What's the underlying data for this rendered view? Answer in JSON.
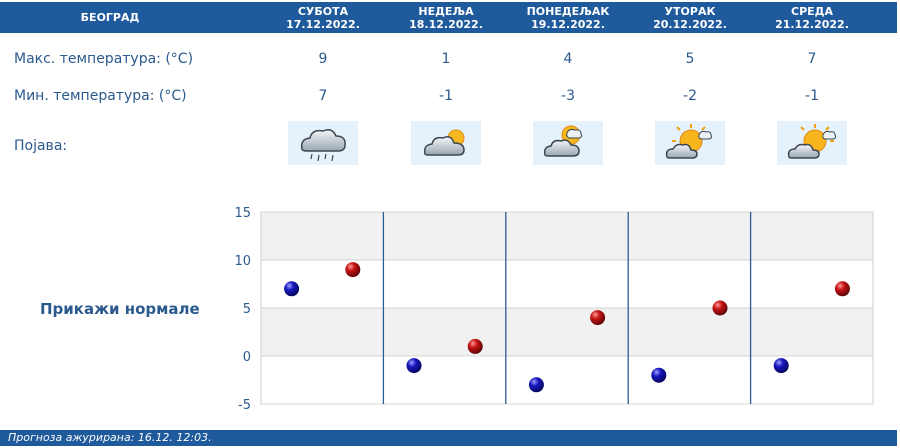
{
  "header": {
    "city": "БЕОГРАД",
    "days": [
      {
        "name": "СУБОТА",
        "date": "17.12.2022."
      },
      {
        "name": "НЕДЕЉА",
        "date": "18.12.2022."
      },
      {
        "name": "ПОНЕДЕЉАК",
        "date": "19.12.2022."
      },
      {
        "name": "УТОРАК",
        "date": "20.12.2022."
      },
      {
        "name": "СРЕДА",
        "date": "21.12.2022."
      }
    ]
  },
  "rows": {
    "max_label": "Макс. температура: (°C)",
    "min_label": "Мин. температура: (°C)",
    "phenomenon_label": "Појава:",
    "max_values": [
      "9",
      "1",
      "4",
      "5",
      "7"
    ],
    "min_values": [
      "7",
      "-1",
      "-3",
      "-2",
      "-1"
    ],
    "icons": [
      "rain-cloud-icon",
      "cloud-sun-icon",
      "sun-cloud-icon",
      "sun-cloud-icon",
      "sun-cloud-icon"
    ]
  },
  "normals_link": "Прикажи нормале",
  "footer": {
    "updated": "Прогноза ажурирана:  16.12. 12:03."
  },
  "chart_data": {
    "type": "scatter",
    "ylim": [
      -5,
      15
    ],
    "yticks": [
      "15",
      "10",
      "5",
      "0",
      "-5"
    ],
    "grid": true,
    "series": [
      {
        "values": [
          7,
          -1,
          -3,
          -2,
          -1
        ],
        "color": "#1010b0"
      },
      {
        "values": [
          9,
          1,
          4,
          5,
          7
        ],
        "color": "#c01010"
      }
    ]
  },
  "colors": {
    "header": "#1e5a9c",
    "text": "#2b5a8e",
    "min_dot": "#1010b0",
    "max_dot": "#c01010"
  }
}
